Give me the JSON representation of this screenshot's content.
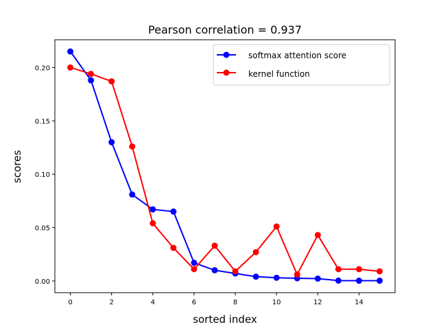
{
  "chart_data": {
    "type": "line",
    "title": "Pearson correlation =  0.937",
    "xlabel": "sorted index",
    "ylabel": "scores",
    "xlim": [
      -0.75,
      15.75
    ],
    "ylim": [
      -0.011,
      0.226
    ],
    "xticks": [
      0,
      2,
      4,
      6,
      8,
      10,
      12,
      14
    ],
    "xtick_labels": [
      "0",
      "2",
      "4",
      "6",
      "8",
      "10",
      "12",
      "14"
    ],
    "yticks": [
      0.0,
      0.05,
      0.1,
      0.15,
      0.2
    ],
    "ytick_labels": [
      "0.00",
      "0.05",
      "0.10",
      "0.15",
      "0.20"
    ],
    "grid": false,
    "legend_position": "top-right",
    "x": [
      0,
      1,
      2,
      3,
      4,
      5,
      6,
      7,
      8,
      9,
      10,
      11,
      12,
      13,
      14,
      15
    ],
    "series": [
      {
        "name": "softmax attention score",
        "color": "#0000ff",
        "values": [
          0.215,
          0.188,
          0.13,
          0.081,
          0.067,
          0.065,
          0.017,
          0.01,
          0.007,
          0.004,
          0.003,
          0.0025,
          0.0022,
          0.0003,
          0.0002,
          0.0002
        ]
      },
      {
        "name": "kernel function",
        "color": "#ff0000",
        "values": [
          0.2,
          0.194,
          0.187,
          0.126,
          0.054,
          0.031,
          0.011,
          0.033,
          0.009,
          0.027,
          0.051,
          0.006,
          0.043,
          0.011,
          0.011,
          0.009
        ]
      }
    ]
  }
}
